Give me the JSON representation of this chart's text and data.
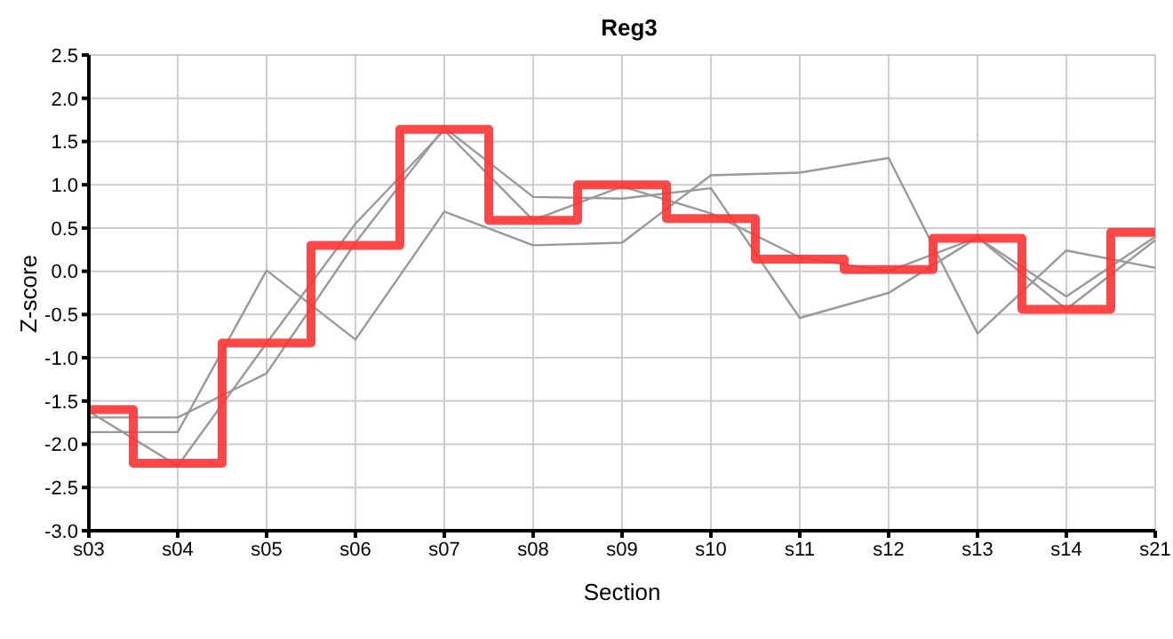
{
  "chart_data": {
    "type": "line",
    "title": "Reg3",
    "xlabel": "Section",
    "ylabel": "Z-score",
    "categories": [
      "s03",
      "s04",
      "s05",
      "s06",
      "s07",
      "s08",
      "s09",
      "s10",
      "s11",
      "s12",
      "s13",
      "s14",
      "s21"
    ],
    "series": [
      {
        "color": "#999999",
        "values": [
          -1.86,
          -1.86,
          0.01,
          -0.79,
          0.69,
          0.3,
          0.33,
          1.11,
          1.14,
          1.31,
          -0.72,
          0.24,
          0.04
        ]
      },
      {
        "color": "#999999",
        "values": [
          -1.69,
          -1.69,
          -1.18,
          0.33,
          1.66,
          0.86,
          0.84,
          0.96,
          -0.54,
          -0.25,
          0.39,
          -0.29,
          0.4
        ]
      },
      {
        "color": "#999999",
        "values": [
          -1.62,
          -2.25,
          -0.83,
          0.55,
          1.63,
          0.59,
          0.98,
          0.67,
          0.16,
          0.0,
          0.39,
          -0.44,
          0.36
        ]
      },
      {
        "type": "step",
        "color": "#ff3333",
        "values": [
          -1.6,
          -2.22,
          -0.83,
          0.3,
          1.64,
          0.59,
          1.0,
          0.61,
          0.14,
          0.02,
          0.38,
          -0.44,
          0.45
        ]
      }
    ],
    "ylim": [
      -3,
      2.5
    ],
    "yticks": [
      {
        "value": -3,
        "label": "-3.0"
      },
      {
        "value": -2.5,
        "label": "-2.5"
      },
      {
        "value": -2,
        "label": "-2.0"
      },
      {
        "value": -1.5,
        "label": "-1.5"
      },
      {
        "value": -1,
        "label": "-1.0"
      },
      {
        "value": -0.5,
        "label": "-0.5"
      },
      {
        "value": 0,
        "label": "0.0"
      },
      {
        "value": 0.5,
        "label": "0.5"
      },
      {
        "value": 1,
        "label": "1.0"
      },
      {
        "value": 1.5,
        "label": "1.5"
      },
      {
        "value": 2,
        "label": "2.0"
      },
      {
        "value": 2.5,
        "label": "2.5"
      }
    ],
    "grid": true,
    "marker": "none"
  }
}
